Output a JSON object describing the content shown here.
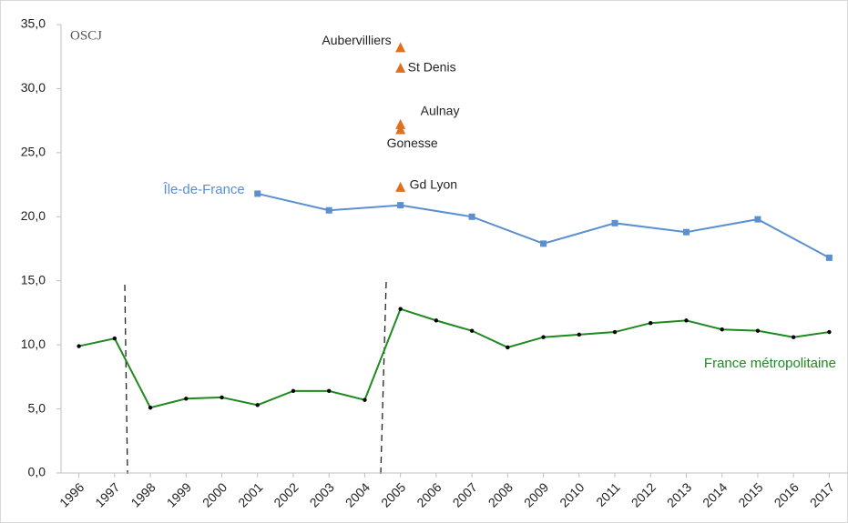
{
  "chart_data": {
    "type": "line",
    "logo": "OSCJ",
    "xlim": [
      1995.5,
      2017.5
    ],
    "xticks": [
      1996,
      1997,
      1998,
      1999,
      2000,
      2001,
      2002,
      2003,
      2004,
      2005,
      2006,
      2007,
      2008,
      2009,
      2010,
      2011,
      2012,
      2013,
      2014,
      2015,
      2016,
      2017
    ],
    "ylim": [
      0,
      35
    ],
    "yticks": [
      {
        "value": 0,
        "label": "0,0"
      },
      {
        "value": 5,
        "label": "5,0"
      },
      {
        "value": 10,
        "label": "10,0"
      },
      {
        "value": 15,
        "label": "15,0"
      },
      {
        "value": 20,
        "label": "20,0"
      },
      {
        "value": 25,
        "label": "25,0"
      },
      {
        "value": 30,
        "label": "30,0"
      },
      {
        "value": 35,
        "label": "35,0"
      }
    ],
    "grid": false,
    "series": [
      {
        "name": "Île-de-France",
        "color": "#5b8fd0",
        "x": [
          2001,
          2003,
          2005,
          2007,
          2009,
          2011,
          2013,
          2015,
          2017
        ],
        "values": [
          21.8,
          20.5,
          20.9,
          20.0,
          17.9,
          19.5,
          18.8,
          19.8,
          16.8
        ]
      },
      {
        "name": "France métropolitaine",
        "color": "#1e8a1e",
        "x": [
          1996,
          1997,
          1998,
          1999,
          2000,
          2001,
          2002,
          2003,
          2004,
          2005,
          2006,
          2007,
          2008,
          2009,
          2010,
          2011,
          2012,
          2013,
          2014,
          2015,
          2016,
          2017
        ],
        "values": [
          9.9,
          10.5,
          5.1,
          5.8,
          5.9,
          5.3,
          6.4,
          6.4,
          5.7,
          12.8,
          11.9,
          11.1,
          9.8,
          10.6,
          10.8,
          11.0,
          11.7,
          11.9,
          11.2,
          11.1,
          10.6,
          11.0
        ]
      }
    ],
    "annotations_color": "#e07020",
    "annotations": [
      {
        "label": "Aubervilliers",
        "x": 2005,
        "y": 33.2
      },
      {
        "label": "St Denis",
        "x": 2005,
        "y": 31.6
      },
      {
        "label": "Aulnay",
        "x": 2005,
        "y": 27.2
      },
      {
        "label": "Gonesse",
        "x": 2005,
        "y": 26.8
      },
      {
        "label": "Gd Lyon",
        "x": 2005,
        "y": 22.3
      }
    ]
  }
}
